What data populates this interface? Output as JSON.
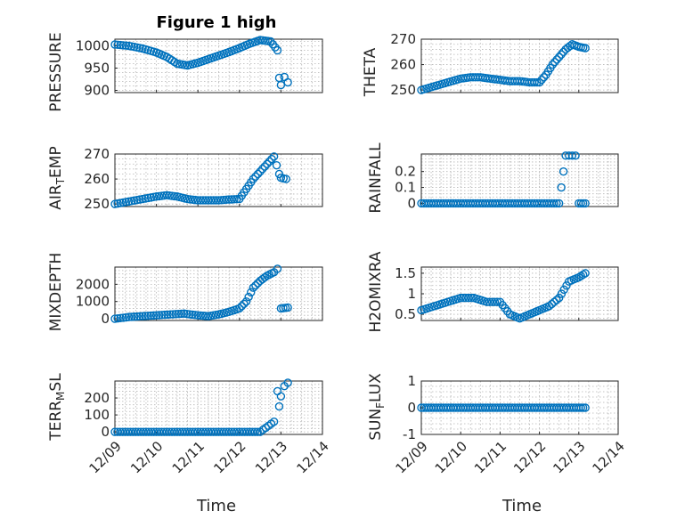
{
  "colors": {
    "marker": "#0072bd",
    "axis": "#262626",
    "grid": "#b5b5b5",
    "background": "#ffffff"
  },
  "chart_data": [
    {
      "type": "scatter",
      "title": "Figure 1 high",
      "ylabel": "PRESSURE",
      "xlabel": "",
      "ylim": [
        895,
        1015
      ],
      "yticks": [
        900,
        950,
        1000
      ],
      "xlim": [
        "2022-12-09",
        "2022-12-14"
      ],
      "grid": true,
      "x": [
        "2022-12-09 00:00",
        "2022-12-09 08:00",
        "2022-12-09 16:00",
        "2022-12-10 00:00",
        "2022-12-10 06:00",
        "2022-12-10 12:00",
        "2022-12-10 18:00",
        "2022-12-11 00:00",
        "2022-12-11 06:00",
        "2022-12-11 12:00",
        "2022-12-11 18:00",
        "2022-12-12 00:00",
        "2022-12-12 06:00",
        "2022-12-12 12:00",
        "2022-12-12 18:00",
        "2022-12-12 22:00",
        "2022-12-12 23:00",
        "2022-12-13 00:00",
        "2022-12-13 02:00",
        "2022-12-13 04:00"
      ],
      "y": [
        1003,
        1000,
        994,
        985,
        975,
        960,
        956,
        962,
        970,
        978,
        986,
        995,
        1005,
        1013,
        1010,
        990,
        928,
        912,
        930,
        918
      ]
    },
    {
      "type": "scatter",
      "title": "",
      "ylabel": "THETA",
      "xlabel": "",
      "ylim": [
        249,
        270
      ],
      "yticks": [
        250,
        260,
        270
      ],
      "xlim": [
        "2022-12-09",
        "2022-12-14"
      ],
      "grid": true,
      "x": [
        "2022-12-09 00:00",
        "2022-12-09 08:00",
        "2022-12-09 16:00",
        "2022-12-10 00:00",
        "2022-12-10 06:00",
        "2022-12-10 12:00",
        "2022-12-10 18:00",
        "2022-12-11 00:00",
        "2022-12-11 06:00",
        "2022-12-11 12:00",
        "2022-12-11 18:00",
        "2022-12-12 00:00",
        "2022-12-12 04:00",
        "2022-12-12 08:00",
        "2022-12-12 12:00",
        "2022-12-12 16:00",
        "2022-12-12 20:00",
        "2022-12-13 00:00",
        "2022-12-13 04:00"
      ],
      "y": [
        250,
        251.5,
        253,
        254.5,
        255,
        255,
        254.5,
        254,
        253.5,
        253.5,
        253,
        253,
        256,
        260,
        263,
        266,
        268,
        267,
        266.5
      ]
    },
    {
      "type": "scatter",
      "title": "",
      "ylabel": "AIR_TEMP",
      "xlabel": "",
      "ylim": [
        249,
        270
      ],
      "yticks": [
        250,
        260,
        270
      ],
      "xlim": [
        "2022-12-09",
        "2022-12-14"
      ],
      "grid": true,
      "x": [
        "2022-12-09 00:00",
        "2022-12-09 08:00",
        "2022-12-09 16:00",
        "2022-12-10 00:00",
        "2022-12-10 06:00",
        "2022-12-10 12:00",
        "2022-12-10 18:00",
        "2022-12-11 00:00",
        "2022-12-11 06:00",
        "2022-12-11 12:00",
        "2022-12-11 18:00",
        "2022-12-12 00:00",
        "2022-12-12 04:00",
        "2022-12-12 08:00",
        "2022-12-12 12:00",
        "2022-12-12 16:00",
        "2022-12-12 20:00",
        "2022-12-12 23:00",
        "2022-12-13 00:00",
        "2022-12-13 03:00"
      ],
      "y": [
        250,
        251,
        252,
        253,
        253.5,
        253,
        252,
        251.5,
        251.5,
        251.5,
        251.8,
        252,
        256,
        260,
        263,
        266,
        269,
        262,
        260.5,
        260
      ]
    },
    {
      "type": "scatter",
      "title": "",
      "ylabel": "RAINFALL",
      "xlabel": "",
      "ylim": [
        -0.02,
        0.31
      ],
      "yticks": [
        0,
        0.1,
        0.2
      ],
      "xlim": [
        "2022-12-09",
        "2022-12-14"
      ],
      "grid": true,
      "x": [
        "2022-12-09 00:00",
        "2022-12-09 12:00",
        "2022-12-10 00:00",
        "2022-12-10 12:00",
        "2022-12-11 00:00",
        "2022-12-11 12:00",
        "2022-12-12 00:00",
        "2022-12-12 12:00",
        "2022-12-12 16:00",
        "2022-12-12 18:00",
        "2022-12-12 20:00",
        "2022-12-12 22:00",
        "2022-12-13 00:00",
        "2022-12-13 04:00"
      ],
      "y": [
        0,
        0,
        0,
        0,
        0,
        0,
        0,
        0,
        0.3,
        0.3,
        0.3,
        0.3,
        0,
        0
      ]
    },
    {
      "type": "scatter",
      "title": "",
      "ylabel": "MIXDEPTH",
      "xlabel": "",
      "ylim": [
        -100,
        3000
      ],
      "yticks": [
        0,
        1000,
        2000
      ],
      "xlim": [
        "2022-12-09",
        "2022-12-14"
      ],
      "grid": true,
      "x": [
        "2022-12-09 00:00",
        "2022-12-09 08:00",
        "2022-12-09 16:00",
        "2022-12-10 00:00",
        "2022-12-10 08:00",
        "2022-12-10 16:00",
        "2022-12-11 00:00",
        "2022-12-11 06:00",
        "2022-12-11 12:00",
        "2022-12-11 18:00",
        "2022-12-12 00:00",
        "2022-12-12 04:00",
        "2022-12-12 08:00",
        "2022-12-12 12:00",
        "2022-12-12 16:00",
        "2022-12-12 20:00",
        "2022-12-12 22:00",
        "2022-12-13 00:00",
        "2022-12-13 04:00"
      ],
      "y": [
        0,
        100,
        150,
        200,
        250,
        300,
        200,
        150,
        250,
        400,
        600,
        1000,
        1800,
        2200,
        2500,
        2700,
        2900,
        600,
        650
      ]
    },
    {
      "type": "scatter",
      "title": "",
      "ylabel": "H2OMIXRA",
      "xlabel": "",
      "ylim": [
        0.35,
        1.65
      ],
      "yticks": [
        0.5,
        1,
        1.5
      ],
      "xlim": [
        "2022-12-09",
        "2022-12-14"
      ],
      "grid": true,
      "x": [
        "2022-12-09 00:00",
        "2022-12-09 08:00",
        "2022-12-09 16:00",
        "2022-12-10 00:00",
        "2022-12-10 08:00",
        "2022-12-10 16:00",
        "2022-12-11 00:00",
        "2022-12-11 06:00",
        "2022-12-11 12:00",
        "2022-12-11 18:00",
        "2022-12-12 00:00",
        "2022-12-12 06:00",
        "2022-12-12 12:00",
        "2022-12-12 18:00",
        "2022-12-13 00:00",
        "2022-12-13 04:00"
      ],
      "y": [
        0.6,
        0.7,
        0.8,
        0.9,
        0.9,
        0.8,
        0.8,
        0.5,
        0.4,
        0.5,
        0.6,
        0.7,
        0.9,
        1.3,
        1.4,
        1.5
      ]
    },
    {
      "type": "scatter",
      "title": "",
      "ylabel": "TERR_MSL",
      "xlabel": "Time",
      "ylim": [
        -15,
        300
      ],
      "yticks": [
        0,
        100,
        200
      ],
      "xlim": [
        "2022-12-09",
        "2022-12-14"
      ],
      "grid": true,
      "xticklabels": [
        "12/09",
        "12/10",
        "12/11",
        "12/12",
        "12/13",
        "12/14"
      ],
      "x": [
        "2022-12-09 00:00",
        "2022-12-09 12:00",
        "2022-12-10 00:00",
        "2022-12-10 12:00",
        "2022-12-11 00:00",
        "2022-12-11 12:00",
        "2022-12-12 00:00",
        "2022-12-12 12:00",
        "2022-12-12 20:00",
        "2022-12-12 22:00",
        "2022-12-12 23:00",
        "2022-12-13 00:00",
        "2022-12-13 02:00",
        "2022-12-13 04:00"
      ],
      "y": [
        0,
        0,
        0,
        0,
        0,
        0,
        0,
        0,
        60,
        240,
        150,
        210,
        270,
        290
      ]
    },
    {
      "type": "scatter",
      "title": "",
      "ylabel": "SUN_FLUX",
      "xlabel": "Time",
      "ylim": [
        -1,
        1
      ],
      "yticks": [
        -1,
        0,
        1
      ],
      "xlim": [
        "2022-12-09",
        "2022-12-14"
      ],
      "grid": true,
      "xticklabels": [
        "12/09",
        "12/10",
        "12/11",
        "12/12",
        "12/13",
        "12/14"
      ],
      "x": [
        "2022-12-09 00:00",
        "2022-12-09 12:00",
        "2022-12-10 00:00",
        "2022-12-10 12:00",
        "2022-12-11 00:00",
        "2022-12-11 12:00",
        "2022-12-12 00:00",
        "2022-12-12 12:00",
        "2022-12-13 00:00",
        "2022-12-13 04:00"
      ],
      "y": [
        0,
        0,
        0,
        0,
        0,
        0,
        0,
        0,
        0,
        0
      ]
    }
  ]
}
